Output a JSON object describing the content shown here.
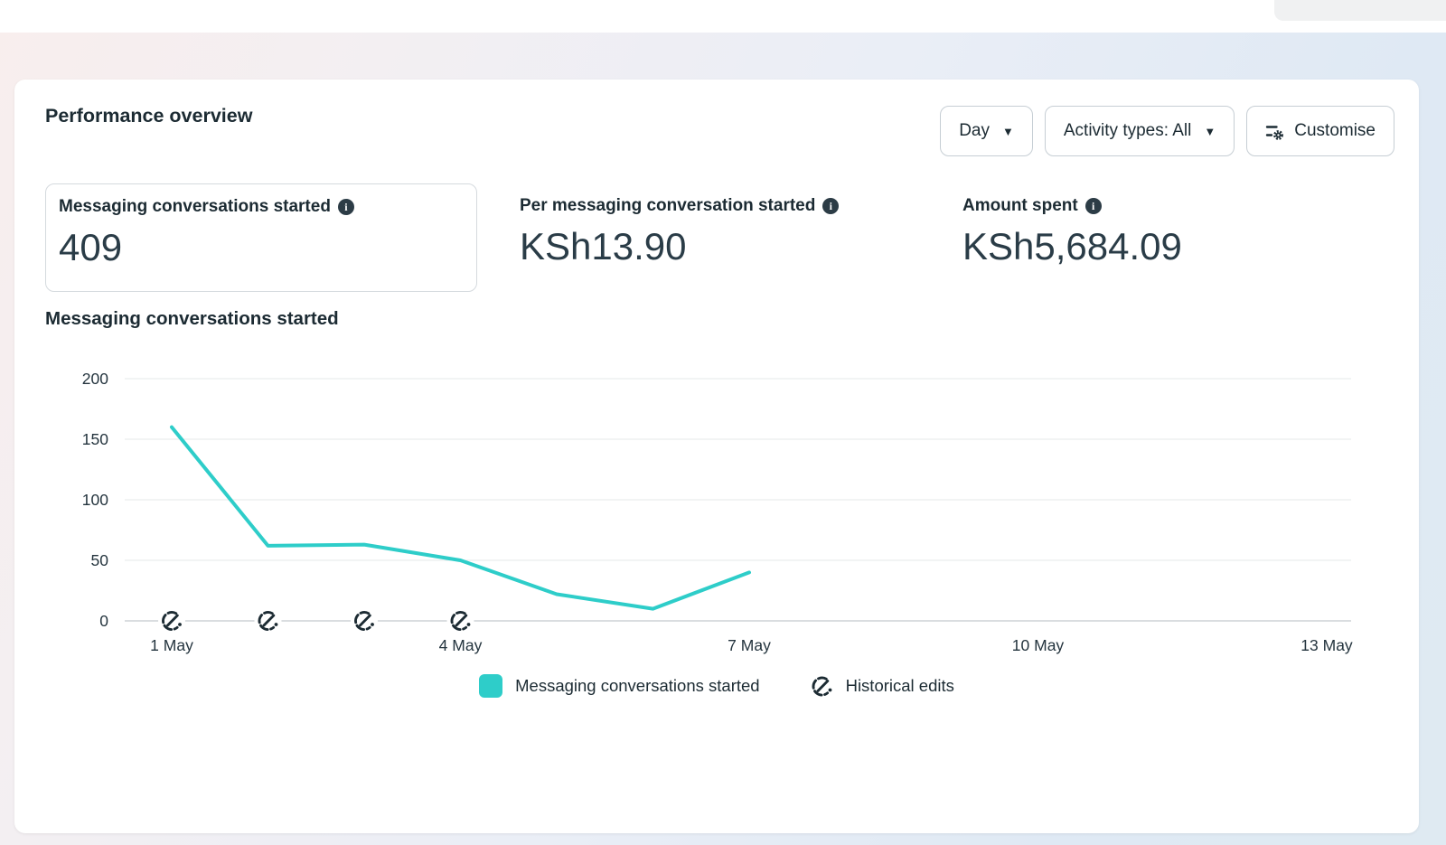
{
  "header": {
    "title": "Performance overview"
  },
  "toolbar": {
    "time_grain_button": {
      "label": "Day"
    },
    "activity_types_button": {
      "label": "Activity types: All"
    },
    "customise_button": {
      "label": "Customise"
    }
  },
  "icons": {
    "info": "i",
    "caret_down": "▼"
  },
  "metrics": [
    {
      "label": "Messaging conversations started",
      "value": "409",
      "selected": true
    },
    {
      "label": "Per messaging conversation started",
      "value": "KSh13.90",
      "selected": false
    },
    {
      "label": "Amount spent",
      "value": "KSh5,684.09",
      "selected": false
    }
  ],
  "chart": {
    "title": "Messaging conversations started"
  },
  "chart_data": {
    "type": "line",
    "title": "Messaging conversations started",
    "series": [
      {
        "name": "Messaging conversations started",
        "color": "#2ecdc9",
        "x": [
          "1 May",
          "2 May",
          "3 May",
          "4 May",
          "5 May",
          "6 May",
          "7 May"
        ],
        "values": [
          160,
          62,
          63,
          50,
          22,
          10,
          40
        ]
      }
    ],
    "x_axis": {
      "tick_labels": [
        "1 May",
        "4 May",
        "7 May",
        "10 May",
        "13 May"
      ],
      "tick_day_indices": [
        0,
        3,
        6,
        9,
        12
      ],
      "total_days": 13
    },
    "y_axis": {
      "ticks": [
        0,
        50,
        100,
        150,
        200
      ],
      "ylim": [
        0,
        200
      ]
    },
    "historical_edits": {
      "day_indices": [
        0,
        1,
        2,
        3
      ]
    },
    "grid": true,
    "legend_position": "bottom"
  },
  "legend": {
    "series_label": "Messaging conversations started",
    "edits_label": "Historical edits"
  }
}
